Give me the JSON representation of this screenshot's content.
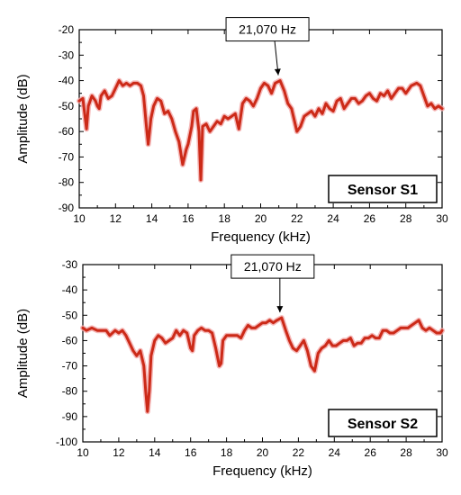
{
  "chart_data": [
    {
      "type": "line",
      "title": "",
      "xlabel": "Frequency (kHz)",
      "ylabel": "Amplitude (dB)",
      "xlim": [
        10,
        30
      ],
      "ylim": [
        -90,
        -20
      ],
      "xticks": [
        10,
        12,
        14,
        16,
        18,
        20,
        22,
        24,
        26,
        28,
        30
      ],
      "yticks": [
        -90,
        -80,
        -70,
        -60,
        -50,
        -40,
        -30,
        -20
      ],
      "grid": false,
      "line_color": "#cc2a18",
      "glow_color": "#f2a6a6",
      "series": [
        {
          "x": [
            10.0,
            10.2,
            10.4,
            10.5,
            10.7,
            10.9,
            11.0,
            11.1,
            11.2,
            11.4,
            11.6,
            11.8,
            12.0,
            12.2,
            12.4,
            12.6,
            12.8,
            13.0,
            13.2,
            13.4,
            13.55,
            13.7,
            13.8,
            13.95,
            14.1,
            14.3,
            14.5,
            14.7,
            14.9,
            15.1,
            15.3,
            15.5,
            15.7,
            15.9,
            16.0,
            16.2,
            16.3,
            16.45,
            16.6,
            16.7,
            16.8,
            17.0,
            17.2,
            17.4,
            17.6,
            17.8,
            18.0,
            18.2,
            18.4,
            18.6,
            18.8,
            19.0,
            19.2,
            19.4,
            19.6,
            19.8,
            20.0,
            20.2,
            20.4,
            20.6,
            20.8,
            21.07,
            21.3,
            21.5,
            21.7,
            21.9,
            22.0,
            22.2,
            22.4,
            22.6,
            22.8,
            23.0,
            23.2,
            23.4,
            23.6,
            23.8,
            24.0,
            24.2,
            24.4,
            24.6,
            24.8,
            25.0,
            25.2,
            25.4,
            25.6,
            25.8,
            26.0,
            26.2,
            26.4,
            26.6,
            26.8,
            27.0,
            27.2,
            27.4,
            27.6,
            27.8,
            28.0,
            28.3,
            28.6,
            28.8,
            29.0,
            29.2,
            29.4,
            29.6,
            29.8,
            30.0
          ],
          "y": [
            -48,
            -47,
            -59,
            -50,
            -46,
            -48,
            -50,
            -51,
            -46,
            -44,
            -47,
            -46,
            -43,
            -40,
            -42,
            -41,
            -42,
            -41,
            -41,
            -42,
            -46,
            -58,
            -65,
            -55,
            -50,
            -47,
            -48,
            -53,
            -52,
            -55,
            -60,
            -64,
            -73,
            -67,
            -65,
            -58,
            -52,
            -51,
            -60,
            -79,
            -58,
            -57,
            -60,
            -58,
            -56,
            -57,
            -54,
            -55,
            -54,
            -53,
            -59,
            -49,
            -47,
            -48,
            -50,
            -47,
            -43,
            -41,
            -42,
            -45,
            -41,
            -40,
            -44,
            -49,
            -51,
            -57,
            -60,
            -58,
            -54,
            -53,
            -52,
            -54,
            -51,
            -53,
            -49,
            -51,
            -52,
            -48,
            -47,
            -51,
            -49,
            -47,
            -47,
            -49,
            -48,
            -46,
            -45,
            -47,
            -48,
            -45,
            -46,
            -44,
            -47,
            -45,
            -43,
            -43,
            -45,
            -42,
            -41,
            -42,
            -46,
            -50,
            -49,
            -51,
            -50,
            -51
          ]
        }
      ],
      "annotation": {
        "text": "21,070 Hz",
        "x": 21.07,
        "y": -40
      },
      "sensor_label": "Sensor S1"
    },
    {
      "type": "line",
      "title": "",
      "xlabel": "Frequency (kHz)",
      "ylabel": "Amplitude (dB)",
      "xlim": [
        10,
        30
      ],
      "ylim": [
        -100,
        -30
      ],
      "xticks": [
        10,
        12,
        14,
        16,
        18,
        20,
        22,
        24,
        26,
        28,
        30
      ],
      "yticks": [
        -100,
        -90,
        -80,
        -70,
        -60,
        -50,
        -40,
        -30
      ],
      "grid": false,
      "line_color": "#cc2a18",
      "glow_color": "#f2a6a6",
      "series": [
        {
          "x": [
            10.0,
            10.2,
            10.5,
            10.8,
            11.0,
            11.3,
            11.5,
            11.8,
            12.0,
            12.2,
            12.4,
            12.6,
            12.8,
            13.0,
            13.2,
            13.4,
            13.5,
            13.6,
            13.7,
            13.8,
            14.0,
            14.2,
            14.4,
            14.6,
            14.8,
            15.0,
            15.2,
            15.4,
            15.6,
            15.8,
            16.0,
            16.1,
            16.2,
            16.4,
            16.6,
            16.8,
            17.0,
            17.2,
            17.4,
            17.6,
            17.7,
            17.8,
            18.0,
            18.2,
            18.4,
            18.6,
            18.8,
            19.0,
            19.2,
            19.4,
            19.6,
            19.8,
            20.0,
            20.2,
            20.4,
            20.6,
            20.8,
            21.07,
            21.3,
            21.5,
            21.7,
            21.9,
            22.1,
            22.3,
            22.5,
            22.7,
            22.9,
            23.1,
            23.3,
            23.5,
            23.7,
            23.9,
            24.1,
            24.3,
            24.5,
            24.7,
            24.9,
            25.1,
            25.3,
            25.5,
            25.7,
            25.9,
            26.1,
            26.3,
            26.5,
            26.7,
            26.9,
            27.1,
            27.3,
            27.5,
            27.7,
            27.9,
            28.1,
            28.3,
            28.5,
            28.7,
            28.9,
            29.1,
            29.3,
            29.5,
            29.7,
            29.9,
            30.0
          ],
          "y": [
            -55,
            -56,
            -55,
            -56,
            -56,
            -56,
            -58,
            -56,
            -57,
            -56,
            -58,
            -61,
            -64,
            -66,
            -64,
            -70,
            -80,
            -88,
            -80,
            -66,
            -60,
            -58,
            -59,
            -61,
            -60,
            -59,
            -56,
            -58,
            -56,
            -57,
            -63,
            -64,
            -58,
            -56,
            -55,
            -56,
            -56,
            -57,
            -63,
            -70,
            -69,
            -60,
            -58,
            -58,
            -58,
            -58,
            -59,
            -56,
            -54,
            -55,
            -55,
            -54,
            -53,
            -53,
            -52,
            -53,
            -52,
            -51,
            -56,
            -60,
            -63,
            -64,
            -62,
            -60,
            -64,
            -70,
            -72,
            -65,
            -63,
            -62,
            -60,
            -62,
            -62,
            -61,
            -60,
            -60,
            -59,
            -62,
            -61,
            -61,
            -59,
            -59,
            -58,
            -59,
            -59,
            -56,
            -56,
            -57,
            -57,
            -56,
            -55,
            -55,
            -55,
            -54,
            -53,
            -52,
            -55,
            -56,
            -55,
            -56,
            -57,
            -57,
            -56
          ]
        }
      ],
      "annotation": {
        "text": "21,070 Hz",
        "x": 21.07,
        "y": -51
      },
      "sensor_label": "Sensor S2"
    }
  ]
}
